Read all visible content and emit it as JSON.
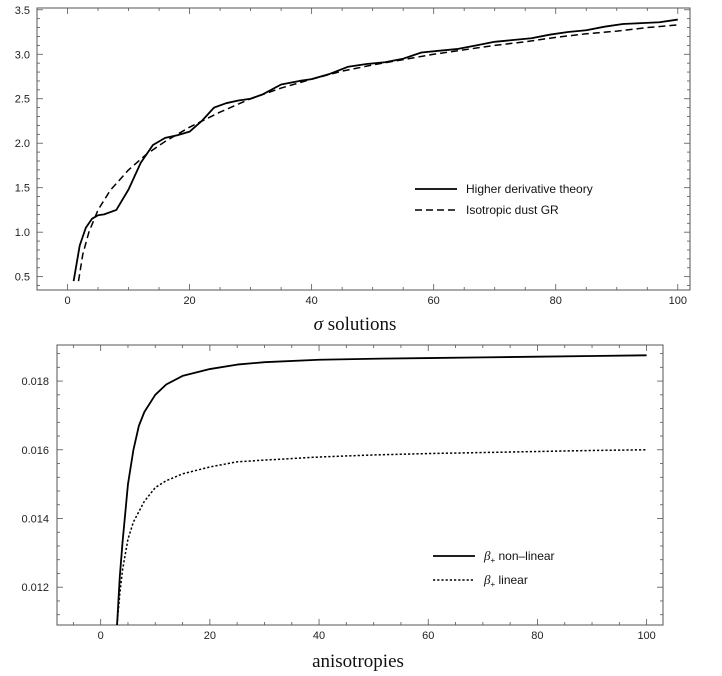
{
  "chart_data": [
    {
      "type": "line",
      "caption_symbol": "σ",
      "caption_text": " solutions",
      "xlim": [
        -5,
        102
      ],
      "ylim": [
        0.35,
        3.52
      ],
      "x_ticks": [
        0,
        20,
        40,
        60,
        80,
        100
      ],
      "y_ticks": [
        0.5,
        1.0,
        1.5,
        2.0,
        2.5,
        3.0,
        3.5
      ],
      "x_tick_labels": [
        "0",
        "20",
        "40",
        "60",
        "80",
        "100"
      ],
      "y_tick_labels": [
        "0.5",
        "1.0",
        "1.5",
        "2.0",
        "2.5",
        "3.0",
        "3.5"
      ],
      "grid": false,
      "legend_position": "right",
      "series": [
        {
          "name": "Higher derivative theory",
          "style": "solid",
          "x": [
            1,
            2,
            3,
            4,
            5,
            6,
            8,
            10,
            12,
            14,
            16,
            18,
            20,
            22,
            24,
            26,
            28,
            30,
            32,
            35,
            38,
            40,
            43,
            46,
            49,
            52,
            55,
            58,
            61,
            64,
            67,
            70,
            73,
            76,
            79,
            82,
            85,
            88,
            91,
            94,
            97,
            100
          ],
          "y": [
            0.45,
            0.85,
            1.05,
            1.15,
            1.19,
            1.2,
            1.25,
            1.48,
            1.78,
            1.98,
            2.06,
            2.09,
            2.13,
            2.25,
            2.4,
            2.45,
            2.48,
            2.5,
            2.55,
            2.66,
            2.7,
            2.72,
            2.78,
            2.86,
            2.89,
            2.91,
            2.95,
            3.02,
            3.04,
            3.06,
            3.1,
            3.14,
            3.16,
            3.18,
            3.22,
            3.25,
            3.27,
            3.31,
            3.34,
            3.35,
            3.36,
            3.39
          ]
        },
        {
          "name": "Isotropic dust GR",
          "style": "dashed",
          "x": [
            1.8,
            2.5,
            3.5,
            5,
            7,
            10,
            13,
            16,
            20,
            25,
            30,
            35,
            40,
            45,
            50,
            55,
            60,
            65,
            70,
            75,
            80,
            85,
            90,
            95,
            100
          ],
          "y": [
            0.45,
            0.75,
            1.0,
            1.25,
            1.47,
            1.7,
            1.88,
            2.02,
            2.18,
            2.35,
            2.5,
            2.62,
            2.72,
            2.81,
            2.88,
            2.94,
            3.0,
            3.05,
            3.1,
            3.14,
            3.19,
            3.23,
            3.26,
            3.3,
            3.33
          ]
        }
      ]
    },
    {
      "type": "line",
      "caption_text": "anisotropies",
      "xlim": [
        -8,
        103
      ],
      "ylim": [
        0.0109,
        0.01905
      ],
      "x_ticks": [
        0,
        20,
        40,
        60,
        80,
        100
      ],
      "y_ticks": [
        0.012,
        0.014,
        0.016,
        0.018
      ],
      "x_tick_labels": [
        "0",
        "20",
        "40",
        "60",
        "80",
        "100"
      ],
      "y_tick_labels": [
        "0.012",
        "0.014",
        "0.016",
        "0.018"
      ],
      "grid": false,
      "legend_position": "right",
      "series": [
        {
          "name_symbol": "β",
          "name_subscript": "+",
          "name": " non–linear",
          "style": "solid",
          "x": [
            3,
            3.5,
            4,
            5,
            6,
            7,
            8,
            10,
            12,
            15,
            20,
            25,
            30,
            40,
            50,
            60,
            70,
            80,
            90,
            100
          ],
          "y": [
            0.0109,
            0.0123,
            0.0133,
            0.015,
            0.016,
            0.0167,
            0.0171,
            0.0176,
            0.0179,
            0.01815,
            0.01835,
            0.01848,
            0.01855,
            0.01862,
            0.01865,
            0.01867,
            0.01869,
            0.01871,
            0.01873,
            0.01875
          ]
        },
        {
          "name_symbol": "β",
          "name_subscript": "+",
          "name": " linear",
          "style": "dotted",
          "x": [
            3,
            3.5,
            4,
            5,
            6,
            8,
            10,
            12,
            15,
            20,
            25,
            30,
            40,
            50,
            60,
            70,
            80,
            90,
            100
          ],
          "y": [
            0.0109,
            0.0118,
            0.0125,
            0.0134,
            0.0139,
            0.0145,
            0.0149,
            0.0151,
            0.0153,
            0.0155,
            0.01565,
            0.0157,
            0.01579,
            0.01585,
            0.01589,
            0.01592,
            0.01595,
            0.01598,
            0.016
          ]
        }
      ]
    }
  ]
}
